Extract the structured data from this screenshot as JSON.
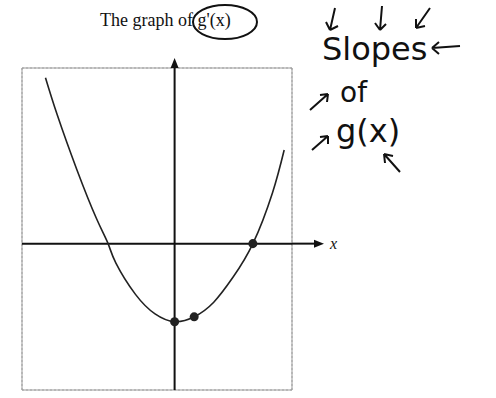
{
  "chart_data": {
    "type": "line",
    "title": "The graph of g'(x)",
    "x_label": "x",
    "annotations": [
      "Slopes",
      "of",
      "g(x)"
    ],
    "x": [
      -6.6,
      -6,
      -5,
      -4,
      -3.4,
      -3,
      -2,
      -1,
      0,
      1,
      2,
      3,
      4,
      5,
      5.6
    ],
    "values": [
      8.5,
      6.6,
      3.8,
      1.3,
      0,
      -1,
      -2.6,
      -3.6,
      -4,
      -3.75,
      -3,
      -1.7,
      0,
      2.6,
      4.8
    ],
    "marked_points": {
      "x": [
        0,
        1,
        4
      ],
      "y": [
        -4,
        -3.75,
        0
      ]
    },
    "xlim": [
      -7.8,
      6
    ],
    "ylim": [
      -7.5,
      9
    ],
    "xticks": [
      -7,
      -6,
      -5,
      -4,
      -3,
      -2,
      -1,
      0,
      1,
      2,
      3,
      4,
      5,
      6
    ],
    "yticks": [
      -7,
      -6,
      -5,
      -4,
      -3,
      -2,
      -1,
      0,
      1,
      2,
      3,
      4,
      5,
      6,
      7,
      8
    ],
    "grid": true,
    "tick_labels": false,
    "color": "#222222",
    "line_style": "solid",
    "marker": "circle"
  }
}
